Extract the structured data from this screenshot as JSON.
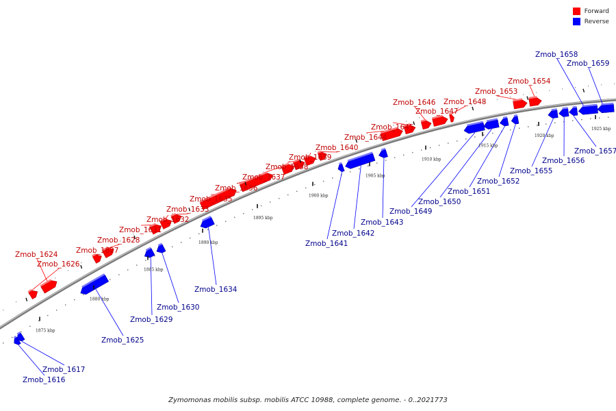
{
  "legend": {
    "forward": {
      "label": "Forward",
      "color": "#ff0000"
    },
    "reverse": {
      "label": "Reverse",
      "color": "#0000ff"
    }
  },
  "caption": "Zymomonas mobilis subsp. mobilis ATCC 10988, complete genome. - 0..2021773",
  "kbp_ticks": [
    "1875 kbp",
    "1880 kbp",
    "1885 kbp",
    "1890 kbp",
    "1895 kbp",
    "1900 kbp",
    "1905 kbp",
    "1910 kbp",
    "1915 kbp",
    "1920 kbp",
    "1925 kbp"
  ],
  "genes": [
    {
      "id": "Zmob_1616",
      "strand": "reverse"
    },
    {
      "id": "Zmob_1617",
      "strand": "reverse"
    },
    {
      "id": "Zmob_1624",
      "strand": "forward"
    },
    {
      "id": "Zmob_1625",
      "strand": "reverse"
    },
    {
      "id": "Zmob_1626",
      "strand": "forward"
    },
    {
      "id": "Zmob_1627",
      "strand": "forward"
    },
    {
      "id": "Zmob_1628",
      "strand": "forward"
    },
    {
      "id": "Zmob_1629",
      "strand": "reverse"
    },
    {
      "id": "Zmob_1630",
      "strand": "reverse"
    },
    {
      "id": "Zmob_1631",
      "strand": "forward"
    },
    {
      "id": "Zmob_1632",
      "strand": "forward"
    },
    {
      "id": "Zmob_1633",
      "strand": "forward"
    },
    {
      "id": "Zmob_1634",
      "strand": "reverse"
    },
    {
      "id": "Zmob_1635",
      "strand": "forward"
    },
    {
      "id": "Zmob_1636",
      "strand": "forward"
    },
    {
      "id": "Zmob_1637",
      "strand": "forward"
    },
    {
      "id": "Zmob_1638",
      "strand": "forward"
    },
    {
      "id": "Zmob_1639",
      "strand": "forward"
    },
    {
      "id": "Zmob_1640",
      "strand": "forward"
    },
    {
      "id": "Zmob_1641",
      "strand": "reverse"
    },
    {
      "id": "Zmob_1642",
      "strand": "reverse"
    },
    {
      "id": "Zmob_1643",
      "strand": "reverse"
    },
    {
      "id": "Zmob_1644",
      "strand": "forward"
    },
    {
      "id": "Zmob_1645",
      "strand": "forward"
    },
    {
      "id": "Zmob_1646",
      "strand": "forward"
    },
    {
      "id": "Zmob_1647",
      "strand": "forward"
    },
    {
      "id": "Zmob_1648",
      "strand": "forward"
    },
    {
      "id": "Zmob_1649",
      "strand": "reverse"
    },
    {
      "id": "Zmob_1650",
      "strand": "reverse"
    },
    {
      "id": "Zmob_1651",
      "strand": "reverse"
    },
    {
      "id": "Zmob_1652",
      "strand": "reverse"
    },
    {
      "id": "Zmob_1653",
      "strand": "forward"
    },
    {
      "id": "Zmob_1654",
      "strand": "forward"
    },
    {
      "id": "Zmob_1655",
      "strand": "reverse"
    },
    {
      "id": "Zmob_1656",
      "strand": "reverse"
    },
    {
      "id": "Zmob_1657",
      "strand": "reverse"
    },
    {
      "id": "Zmob_1658",
      "strand": "reverse"
    },
    {
      "id": "Zmob_1659",
      "strand": "reverse"
    }
  ]
}
